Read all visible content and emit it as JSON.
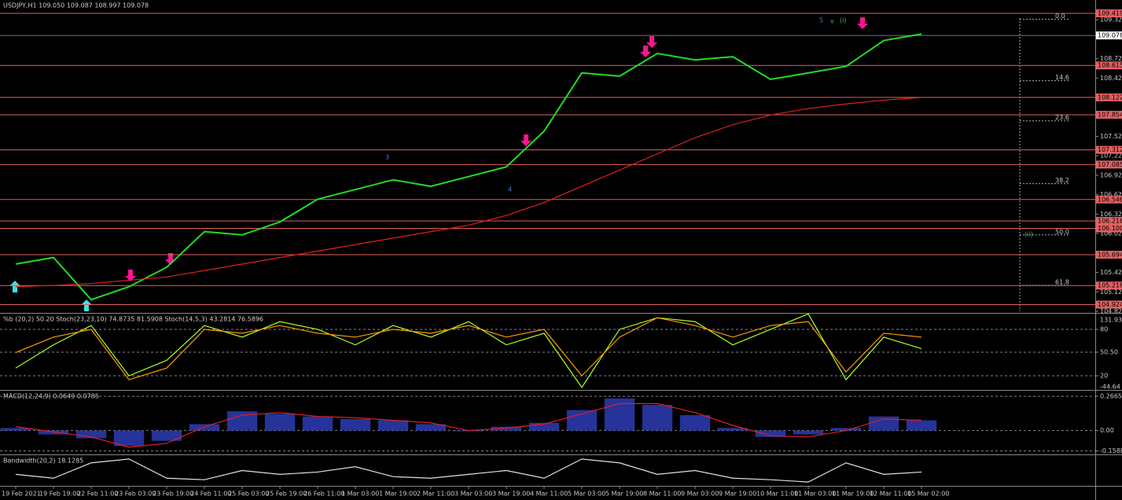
{
  "chart_data": [
    {
      "type": "line",
      "title": "USDJPY,H1  109.050 109.087 108.997 109.078",
      "categories": [
        "19 Feb 2021",
        "19 Feb 19:00",
        "22 Feb 11:00",
        "23 Feb 03:00",
        "23 Feb 19:00",
        "24 Feb 11:00",
        "25 Feb 03:00",
        "25 Feb 19:00",
        "26 Feb 11:00",
        "1 Mar 03:00",
        "1 Mar 19:00",
        "2 Mar 11:00",
        "3 Mar 03:00",
        "3 Mar 19:00",
        "4 Mar 11:00",
        "5 Mar 03:00",
        "5 Mar 19:00",
        "8 Mar 11:00",
        "9 Mar 03:00",
        "9 Mar 19:00",
        "10 Mar 11:00",
        "11 Mar 03:00",
        "11 Mar 19:00",
        "12 Mar 11:00",
        "15 Mar 02:00"
      ],
      "series": [
        {
          "color": "#22dd22",
          "values": [
            105.55,
            105.65,
            105.0,
            105.2,
            105.5,
            106.05,
            106.0,
            106.2,
            106.55,
            106.7,
            106.85,
            106.75,
            106.9,
            107.05,
            107.6,
            108.5,
            108.45,
            108.8,
            108.7,
            108.75,
            108.4,
            108.5,
            108.6,
            109.0,
            109.1
          ]
        },
        {
          "color": "#e02020",
          "values": [
            105.2,
            105.22,
            105.25,
            105.3,
            105.35,
            105.45,
            105.55,
            105.65,
            105.75,
            105.85,
            105.95,
            106.05,
            106.15,
            106.3,
            106.5,
            106.75,
            107.0,
            107.25,
            107.5,
            107.7,
            107.85,
            107.95,
            108.02,
            108.08,
            108.12
          ]
        }
      ],
      "ylim": [
        104.796,
        109.625
      ],
      "yticks": [
        {
          "value": 109.32,
          "label": "109.320"
        },
        {
          "value": 108.72,
          "label": "108.720"
        },
        {
          "value": 108.42,
          "label": "108.420"
        },
        {
          "value": 107.52,
          "label": "107.520"
        },
        {
          "value": 107.22,
          "label": "107.220"
        },
        {
          "value": 106.92,
          "label": "106.920"
        },
        {
          "value": 106.62,
          "label": "106.620"
        },
        {
          "value": 106.32,
          "label": "106.320"
        },
        {
          "value": 106.02,
          "label": "106.020"
        },
        {
          "value": 105.42,
          "label": "105.420"
        },
        {
          "value": 105.12,
          "label": "105.120"
        },
        {
          "value": 104.82,
          "label": "104.820"
        }
      ],
      "levels": [
        {
          "value": 109.419,
          "label": "109.419"
        },
        {
          "value": 108.615,
          "label": "108.615"
        },
        {
          "value": 108.122,
          "label": "108.122"
        },
        {
          "value": 107.854,
          "label": "107.854"
        },
        {
          "value": 107.312,
          "label": "107.312"
        },
        {
          "value": 107.085,
          "label": "107.085"
        },
        {
          "value": 106.546,
          "label": "106.546"
        },
        {
          "value": 106.216,
          "label": "106.216"
        },
        {
          "value": 106.1,
          "label": "106.100"
        },
        {
          "value": 105.694,
          "label": "105.694"
        },
        {
          "value": 105.218,
          "label": "105.218"
        },
        {
          "value": 104.924,
          "label": "104.924"
        }
      ],
      "level_color": "#e06060",
      "current": {
        "value": 109.078,
        "label": "109.078"
      },
      "fib_levels": [
        {
          "label": "0.0",
          "price": 109.33
        },
        {
          "label": "14.6",
          "price": 108.38
        },
        {
          "label": "23.6",
          "price": 107.76
        },
        {
          "label": "38.2",
          "price": 106.79
        },
        {
          "label": "50.0",
          "price": 106.0
        },
        {
          "label": "61.8",
          "price": 105.22
        }
      ],
      "wave_labels": [
        "3",
        "4",
        "5",
        "v",
        "(i)",
        "(ii)"
      ]
    },
    {
      "type": "line",
      "title": "%b (20,2) 50.20  Stoch(23,23,10) 74.8735 81.5908  Stoch(14,5,3) 43.2814 76.5896",
      "series": [
        {
          "color": "#aaff22",
          "values": [
            30,
            60,
            85,
            20,
            40,
            85,
            70,
            90,
            80,
            60,
            85,
            70,
            90,
            60,
            75,
            5,
            80,
            95,
            90,
            60,
            80,
            100,
            15,
            70,
            55
          ]
        },
        {
          "color": "#ff9900",
          "values": [
            50,
            70,
            80,
            15,
            30,
            80,
            75,
            85,
            75,
            70,
            80,
            75,
            85,
            70,
            80,
            20,
            70,
            95,
            85,
            70,
            85,
            90,
            25,
            75,
            70
          ]
        }
      ],
      "ylim": [
        1.7,
        100.3
      ],
      "yticks": [
        80,
        {
          "value": 50.5,
          "label": "50.50"
        },
        20
      ],
      "range_labels": [
        "131.93",
        "-44.64"
      ]
    },
    {
      "type": "bar",
      "title": "MACD(12,24,9) 0.0649 0.0785",
      "series": [
        {
          "style": "bar",
          "color": "#3040c0",
          "values": [
            0.02,
            -0.03,
            -0.06,
            -0.12,
            -0.08,
            0.05,
            0.15,
            0.13,
            0.11,
            0.09,
            0.08,
            0.05,
            0.0,
            0.03,
            0.06,
            0.16,
            0.25,
            0.2,
            0.12,
            0.02,
            -0.05,
            -0.03,
            0.02,
            0.11,
            0.08
          ]
        },
        {
          "style": "line",
          "color": "#e02020",
          "values": [
            0.03,
            -0.01,
            -0.05,
            -0.13,
            -0.1,
            0.03,
            0.12,
            0.14,
            0.11,
            0.1,
            0.08,
            0.06,
            0.0,
            0.02,
            0.05,
            0.13,
            0.21,
            0.21,
            0.14,
            0.04,
            -0.04,
            -0.05,
            0.0,
            0.09,
            0.08
          ]
        }
      ],
      "ylim": [
        -0.186,
        0.3105
      ],
      "yticks": [
        {
          "value": 0.2665,
          "label": "0.2665"
        },
        {
          "value": 0,
          "label": "0.00"
        },
        {
          "value": -0.1588,
          "label": "-0.1588"
        }
      ]
    },
    {
      "type": "line",
      "title": "Bandwidth(20,2) 18.1285",
      "series": [
        {
          "color": "#e0e0e0",
          "values": [
            15,
            10,
            30,
            35,
            10,
            8,
            20,
            15,
            18,
            25,
            12,
            10,
            15,
            20,
            10,
            35,
            30,
            15,
            20,
            10,
            8,
            5,
            30,
            15,
            18
          ]
        }
      ],
      "ylim": [
        0,
        40
      ]
    }
  ]
}
